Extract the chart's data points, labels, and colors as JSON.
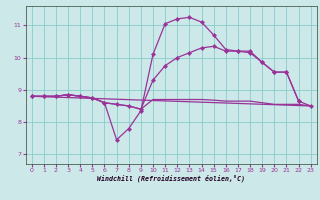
{
  "xlabel": "Windchill (Refroidissement éolien,°C)",
  "background_color": "#cce8e8",
  "grid_color": "#88cccc",
  "line_color": "#993399",
  "xlim": [
    -0.5,
    23.5
  ],
  "ylim": [
    6.7,
    11.6
  ],
  "xticks": [
    0,
    1,
    2,
    3,
    4,
    5,
    6,
    7,
    8,
    9,
    10,
    11,
    12,
    13,
    14,
    15,
    16,
    17,
    18,
    19,
    20,
    21,
    22,
    23
  ],
  "yticks": [
    7,
    8,
    9,
    10,
    11
  ],
  "series1_x": [
    0,
    1,
    2,
    3,
    4,
    5,
    6,
    7,
    8,
    9,
    10,
    11,
    12,
    13,
    14,
    15,
    16,
    17,
    18,
    19,
    20,
    21,
    22
  ],
  "series1_y": [
    8.8,
    8.8,
    8.8,
    8.85,
    8.8,
    8.75,
    8.6,
    7.45,
    7.8,
    8.35,
    10.1,
    11.05,
    11.2,
    11.25,
    11.1,
    10.7,
    10.25,
    10.2,
    10.2,
    9.85,
    9.55,
    9.55,
    8.65
  ],
  "series2_x": [
    0,
    1,
    2,
    3,
    4,
    5,
    6,
    7,
    8,
    9,
    10,
    11,
    12,
    13,
    14,
    15,
    16,
    17,
    18,
    19,
    20,
    21,
    22,
    23
  ],
  "series2_y": [
    8.8,
    8.8,
    8.8,
    8.85,
    8.8,
    8.75,
    8.6,
    8.55,
    8.5,
    8.4,
    9.3,
    9.75,
    10.0,
    10.15,
    10.3,
    10.35,
    10.2,
    10.2,
    10.15,
    9.85,
    9.55,
    9.55,
    8.65,
    8.5
  ],
  "series3_x": [
    0,
    1,
    2,
    3,
    4,
    5,
    6,
    7,
    8,
    9,
    10,
    11,
    12,
    13,
    14,
    15,
    16,
    17,
    18,
    19,
    20,
    21,
    22,
    23
  ],
  "series3_y": [
    8.8,
    8.8,
    8.8,
    8.85,
    8.8,
    8.75,
    8.6,
    8.55,
    8.5,
    8.4,
    8.7,
    8.7,
    8.7,
    8.7,
    8.7,
    8.68,
    8.65,
    8.65,
    8.65,
    8.6,
    8.55,
    8.55,
    8.55,
    8.5
  ],
  "series4_x": [
    0,
    23
  ],
  "series4_y": [
    8.8,
    8.5
  ]
}
